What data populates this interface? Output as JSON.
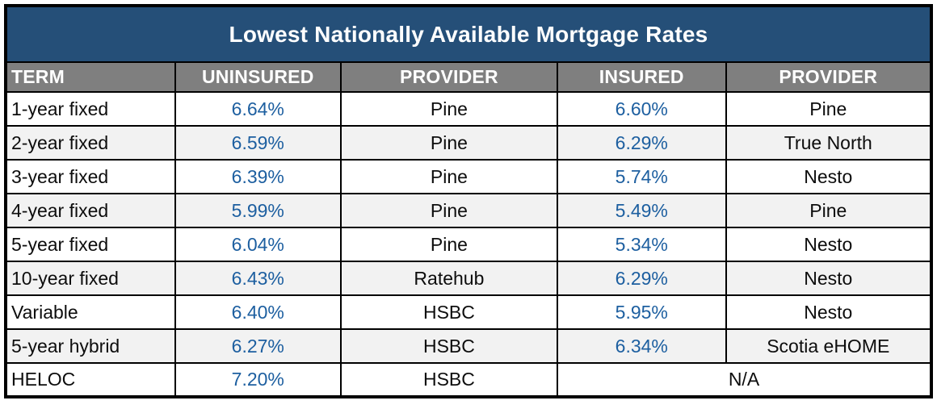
{
  "chart_data": {
    "type": "table",
    "title": "Lowest Nationally Available Mortgage Rates",
    "columns": [
      "TERM",
      "UNINSURED",
      "PROVIDER",
      "INSURED",
      "PROVIDER"
    ],
    "rows": [
      {
        "term": "1-year fixed",
        "uninsured": "6.64%",
        "uninsured_provider": "Pine",
        "insured": "6.60%",
        "insured_provider": "Pine"
      },
      {
        "term": "2-year fixed",
        "uninsured": "6.59%",
        "uninsured_provider": "Pine",
        "insured": "6.29%",
        "insured_provider": "True North"
      },
      {
        "term": "3-year fixed",
        "uninsured": "6.39%",
        "uninsured_provider": "Pine",
        "insured": "5.74%",
        "insured_provider": "Nesto"
      },
      {
        "term": "4-year fixed",
        "uninsured": "5.99%",
        "uninsured_provider": "Pine",
        "insured": "5.49%",
        "insured_provider": "Pine"
      },
      {
        "term": "5-year fixed",
        "uninsured": "6.04%",
        "uninsured_provider": "Pine",
        "insured": "5.34%",
        "insured_provider": "Nesto"
      },
      {
        "term": "10-year fixed",
        "uninsured": "6.43%",
        "uninsured_provider": "Ratehub",
        "insured": "6.29%",
        "insured_provider": "Nesto"
      },
      {
        "term": "Variable",
        "uninsured": "6.40%",
        "uninsured_provider": "HSBC",
        "insured": "5.95%",
        "insured_provider": "Nesto"
      },
      {
        "term": "5-year hybrid",
        "uninsured": "6.27%",
        "uninsured_provider": "HSBC",
        "insured": "6.34%",
        "insured_provider": "Scotia eHOME"
      },
      {
        "term": "HELOC",
        "uninsured": "7.20%",
        "uninsured_provider": "HSBC",
        "insured_merged": "N/A"
      }
    ]
  },
  "colors": {
    "title_bg": "#254F78",
    "header_bg": "#7F7F7F",
    "rate_text": "#1D5FA0",
    "row_alt_bg": "#F2F2F2",
    "grid_border": "#000000",
    "header_text": "#FFFFFF",
    "body_text": "#0D0D0D"
  }
}
